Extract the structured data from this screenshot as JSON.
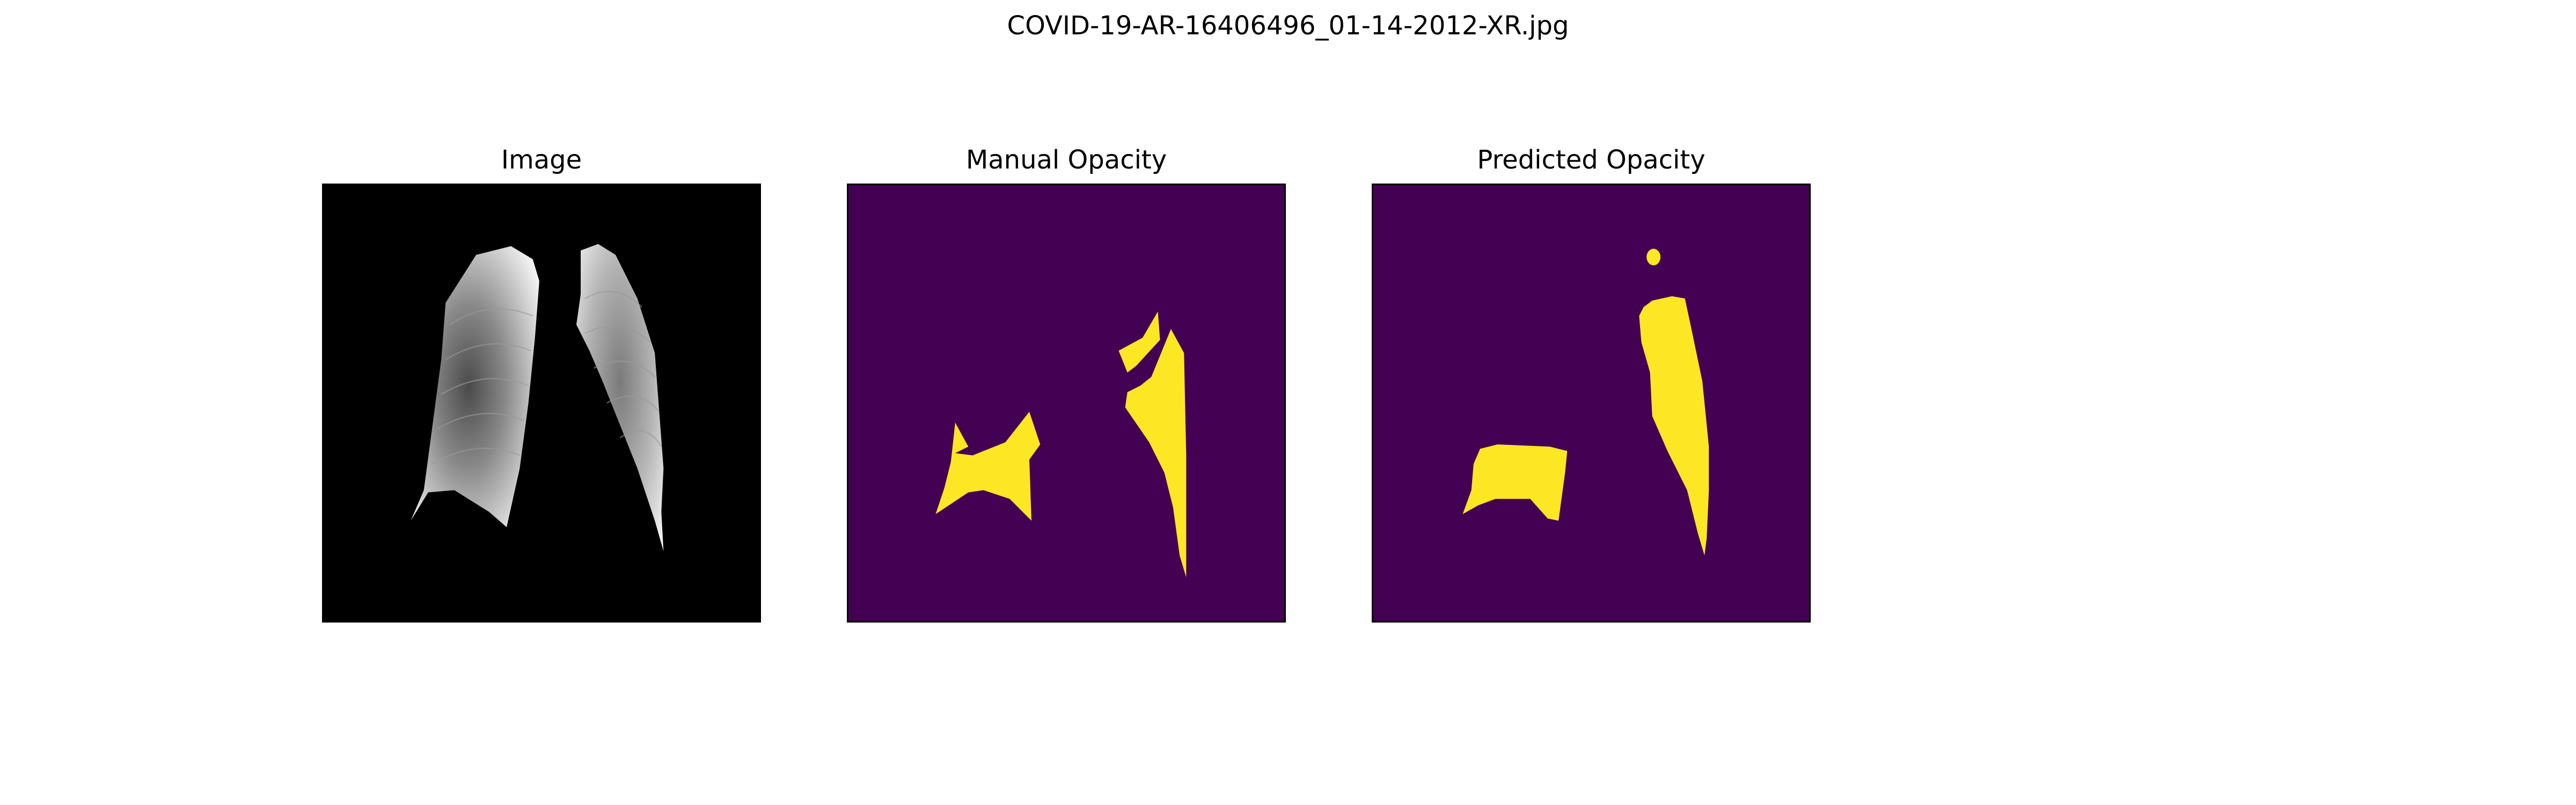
{
  "figure": {
    "suptitle": "COVID-19-AR-16406496_01-14-2012-XR.jpg"
  },
  "panels": [
    {
      "title": "Image"
    },
    {
      "title": "Manual Opacity"
    },
    {
      "title": "Predicted Opacity"
    }
  ],
  "colors": {
    "image_background": "#000000",
    "mask_background": "#440154",
    "mask_foreground": "#fde725",
    "lung_light": "#e6e6e6",
    "lung_dark": "#5a5a5a"
  }
}
